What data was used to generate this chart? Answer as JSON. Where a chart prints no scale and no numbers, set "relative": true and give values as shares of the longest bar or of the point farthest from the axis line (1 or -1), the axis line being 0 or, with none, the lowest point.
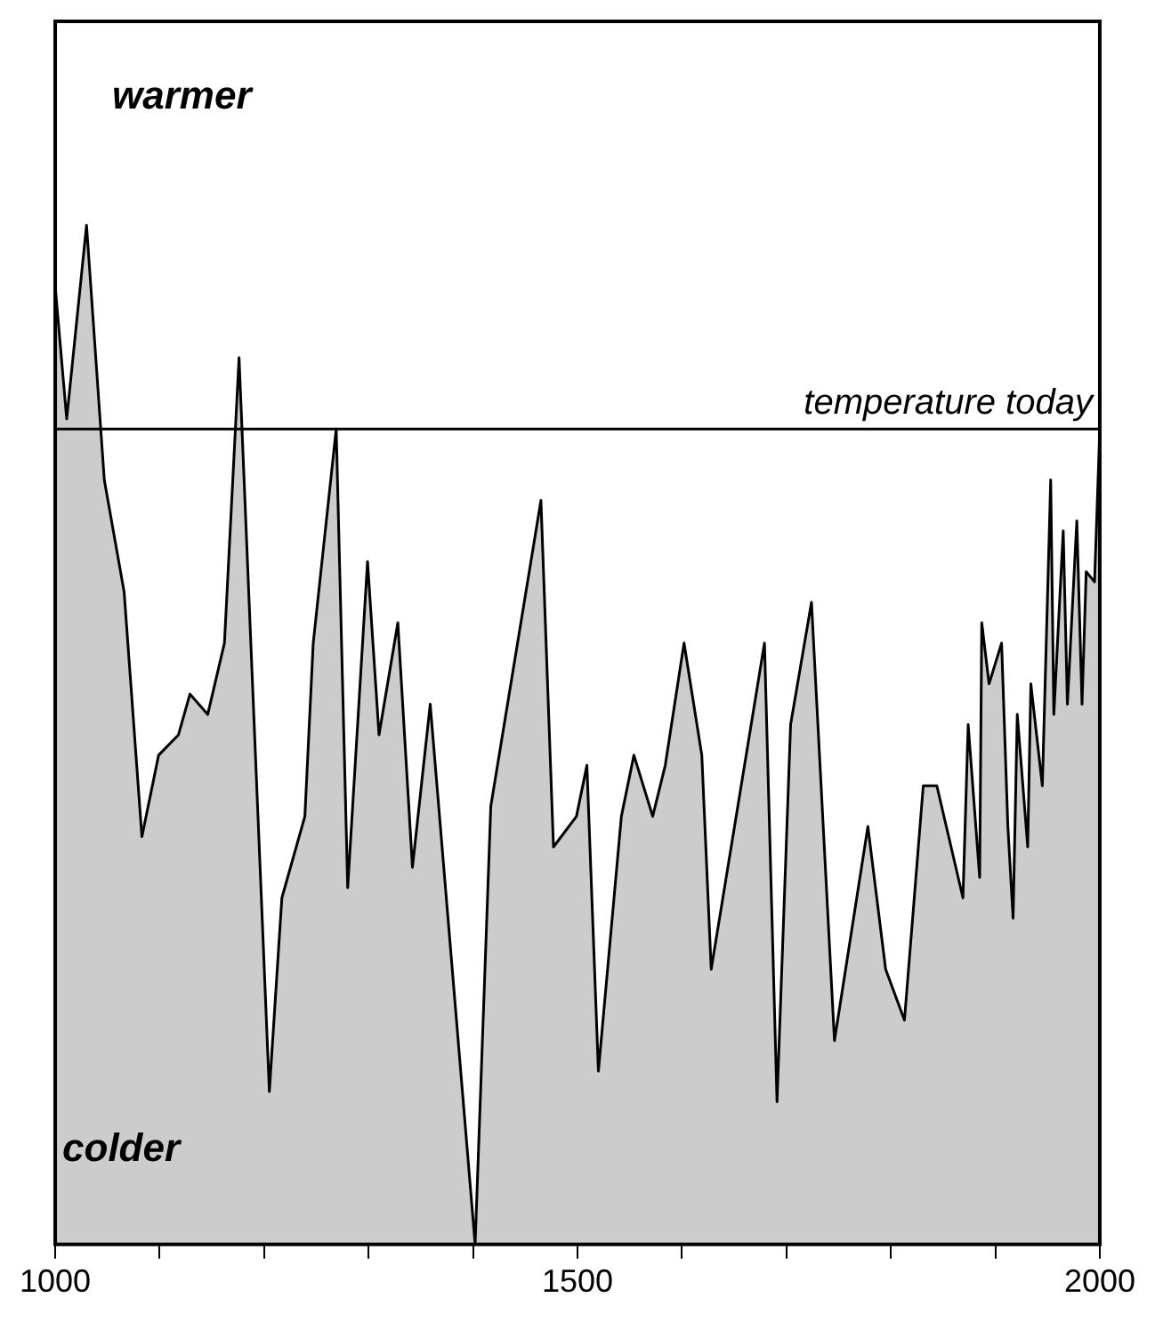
{
  "chart_data": {
    "type": "area",
    "relative": true,
    "x": [
      1000,
      1011,
      1030,
      1047,
      1066,
      1083,
      1099,
      1118,
      1129,
      1146,
      1162,
      1176,
      1205,
      1217,
      1239,
      1247,
      1269,
      1280,
      1299,
      1310,
      1328,
      1342,
      1359,
      1402,
      1417,
      1465,
      1477,
      1499,
      1509,
      1520,
      1542,
      1554,
      1572,
      1584,
      1602,
      1619,
      1628,
      1679,
      1691,
      1704,
      1724,
      1746,
      1778,
      1795,
      1813,
      1831,
      1844,
      1869,
      1874,
      1885,
      1887,
      1894,
      1906,
      1912,
      1917,
      1921,
      1931,
      1934,
      1945,
      1953,
      1956,
      1965,
      1969,
      1978,
      1983,
      1987,
      1995,
      2000
    ],
    "series": [
      {
        "color": "#000000",
        "values": [
          0.94,
          0.81,
          1.0,
          0.75,
          0.64,
          0.4,
          0.48,
          0.5,
          0.54,
          0.52,
          0.59,
          0.87,
          0.15,
          0.34,
          0.42,
          0.59,
          0.8,
          0.35,
          0.67,
          0.5,
          0.61,
          0.37,
          0.53,
          0.0,
          0.43,
          0.73,
          0.39,
          0.42,
          0.47,
          0.17,
          0.42,
          0.48,
          0.42,
          0.47,
          0.59,
          0.48,
          0.27,
          0.59,
          0.14,
          0.51,
          0.63,
          0.2,
          0.41,
          0.27,
          0.22,
          0.45,
          0.45,
          0.34,
          0.51,
          0.36,
          0.61,
          0.55,
          0.59,
          0.41,
          0.32,
          0.52,
          0.39,
          0.55,
          0.45,
          0.75,
          0.52,
          0.7,
          0.53,
          0.71,
          0.53,
          0.66,
          0.65,
          0.8
        ]
      }
    ],
    "xlim": [
      1000,
      2000
    ],
    "xticks": [
      1000,
      {
        "value": 1100,
        "label": null
      },
      {
        "value": 1200,
        "label": null
      },
      {
        "value": 1300,
        "label": null
      },
      {
        "value": 1400,
        "label": null
      },
      1500,
      {
        "value": 1600,
        "label": null
      },
      {
        "value": 1700,
        "label": null
      },
      {
        "value": 1800,
        "label": null
      },
      {
        "value": 1900,
        "label": null
      },
      2000
    ],
    "ref_lines": [
      {
        "axis": "y",
        "value": 0.8,
        "label": "temperature today",
        "color": "#000000"
      }
    ],
    "annotations": [
      "warmer",
      "colder"
    ],
    "tick_labels": "x"
  }
}
